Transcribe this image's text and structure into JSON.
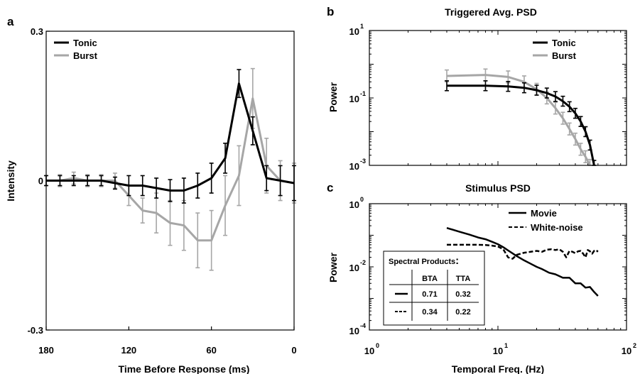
{
  "chart_data": [
    {
      "type": "line",
      "panel_letter": "a",
      "xlabel": "Time Before Response (ms)",
      "ylabel": "Intensity",
      "xlim": [
        180,
        0
      ],
      "x_reversed": true,
      "ylim": [
        -0.3,
        0.3
      ],
      "x_ticks": [
        180,
        120,
        60,
        0
      ],
      "x_tick_labels": [
        "180",
        "120",
        "60",
        "0"
      ],
      "y_ticks": [
        0.3,
        0,
        -0.3
      ],
      "y_tick_labels": [
        "0.3",
        "0",
        "-0.3"
      ],
      "legend_position": "top-left",
      "series": [
        {
          "name": "Tonic",
          "color": "#000000",
          "x": [
            180,
            170,
            160,
            150,
            140,
            130,
            120,
            110,
            100,
            90,
            80,
            70,
            60,
            50,
            40,
            30,
            20,
            10,
            0
          ],
          "y": [
            0,
            0,
            0,
            0,
            0,
            -0.005,
            -0.01,
            -0.01,
            -0.015,
            -0.02,
            -0.02,
            -0.01,
            0.005,
            0.045,
            0.195,
            0.1,
            0.005,
            0,
            -0.005
          ],
          "err": [
            0.01,
            0.01,
            0.01,
            0.01,
            0.01,
            0.012,
            0.02,
            0.02,
            0.02,
            0.022,
            0.025,
            0.025,
            0.03,
            0.03,
            0.028,
            0.028,
            0.025,
            0.03,
            0.035
          ]
        },
        {
          "name": "Burst",
          "color": "#a6a6a6",
          "x": [
            180,
            170,
            160,
            150,
            140,
            130,
            120,
            110,
            100,
            90,
            80,
            70,
            60,
            50,
            40,
            30,
            20,
            10,
            0
          ],
          "y": [
            0,
            0,
            0.005,
            0,
            0,
            0,
            -0.03,
            -0.06,
            -0.065,
            -0.085,
            -0.09,
            -0.12,
            -0.12,
            -0.05,
            0.01,
            0.165,
            0.03,
            0,
            -0.005
          ],
          "err": [
            0.01,
            0.012,
            0.012,
            0.012,
            0.012,
            0.015,
            0.02,
            0.025,
            0.04,
            0.045,
            0.05,
            0.055,
            0.06,
            0.06,
            0.06,
            0.06,
            0.055,
            0.04,
            0.04
          ]
        }
      ]
    },
    {
      "type": "line",
      "panel_letter": "b",
      "title": "Triggered Avg. PSD",
      "xlabel": "",
      "ylabel": "Power",
      "x_scale": "log",
      "y_scale": "log",
      "xlim": [
        1,
        100
      ],
      "ylim": [
        0.001,
        10
      ],
      "y_ticks": [
        10,
        0.1,
        0.001
      ],
      "y_tick_base": [
        "10",
        "10",
        "10"
      ],
      "y_tick_exp": [
        "1",
        "-1",
        "-3"
      ],
      "legend_position": "top-right",
      "series": [
        {
          "name": "Tonic",
          "color": "#000000",
          "x": [
            4,
            8,
            12,
            16,
            20,
            24,
            28,
            32,
            36,
            40,
            44,
            48,
            52,
            56
          ],
          "y": [
            0.23,
            0.23,
            0.22,
            0.2,
            0.17,
            0.14,
            0.11,
            0.08,
            0.055,
            0.035,
            0.02,
            0.01,
            0.004,
            0.001
          ],
          "err_factor": 1.4
        },
        {
          "name": "Burst",
          "color": "#a6a6a6",
          "x": [
            4,
            8,
            12,
            16,
            20,
            24,
            28,
            32,
            36,
            40,
            44,
            48,
            52
          ],
          "y": [
            0.45,
            0.48,
            0.42,
            0.3,
            0.18,
            0.1,
            0.05,
            0.025,
            0.012,
            0.006,
            0.003,
            0.0018,
            0.001
          ],
          "err_factor": 1.5
        }
      ]
    },
    {
      "type": "line",
      "panel_letter": "c",
      "title": "Stimulus PSD",
      "xlabel": "Temporal Freq. (Hz)",
      "ylabel": "Power",
      "x_scale": "log",
      "y_scale": "log",
      "xlim": [
        1,
        100
      ],
      "ylim": [
        0.0001,
        1
      ],
      "x_ticks": [
        1,
        10,
        100
      ],
      "x_tick_base": [
        "10",
        "10",
        "10"
      ],
      "x_tick_exp": [
        "0",
        "1",
        "2"
      ],
      "y_ticks": [
        1,
        0.01,
        0.0001
      ],
      "y_tick_base": [
        "10",
        "10",
        "10"
      ],
      "y_tick_exp": [
        "0",
        "-2",
        "-4"
      ],
      "legend_position": "top-right",
      "series": [
        {
          "name": "Movie",
          "color": "#000000",
          "dash": "solid",
          "x": [
            4,
            5,
            6,
            7,
            8,
            9,
            10,
            11,
            12,
            14,
            16,
            18,
            20,
            22,
            25,
            28,
            32,
            36,
            40,
            44,
            48,
            52,
            56,
            60
          ],
          "y": [
            0.17,
            0.13,
            0.105,
            0.085,
            0.075,
            0.062,
            0.052,
            0.042,
            0.033,
            0.022,
            0.016,
            0.0125,
            0.01,
            0.0085,
            0.0065,
            0.0058,
            0.0045,
            0.0045,
            0.003,
            0.003,
            0.0022,
            0.0023,
            0.0016,
            0.0012
          ]
        },
        {
          "name": "White-noise",
          "color": "#000000",
          "dash": "dashed",
          "x": [
            4,
            5,
            6,
            7,
            8,
            9,
            10,
            11,
            12,
            13,
            14,
            16,
            18,
            20,
            22,
            24,
            26,
            28,
            30,
            32,
            34,
            36,
            38,
            40,
            42,
            44,
            46,
            48,
            50,
            52,
            54,
            56,
            58,
            60
          ],
          "y": [
            0.05,
            0.05,
            0.05,
            0.05,
            0.049,
            0.047,
            0.044,
            0.036,
            0.02,
            0.018,
            0.024,
            0.028,
            0.03,
            0.032,
            0.03,
            0.035,
            0.036,
            0.034,
            0.036,
            0.03,
            0.02,
            0.032,
            0.03,
            0.027,
            0.031,
            0.032,
            0.026,
            0.02,
            0.034,
            0.031,
            0.026,
            0.032,
            0.034,
            0.03
          ]
        }
      ],
      "inset_table": {
        "title": "Spectral Products",
        "columns": [
          "BTA",
          "TTA"
        ],
        "rows": [
          {
            "line": "solid",
            "values": [
              "0.71",
              "0.32"
            ]
          },
          {
            "line": "dashed",
            "values": [
              "0.34",
              "0.22"
            ]
          }
        ]
      }
    }
  ]
}
